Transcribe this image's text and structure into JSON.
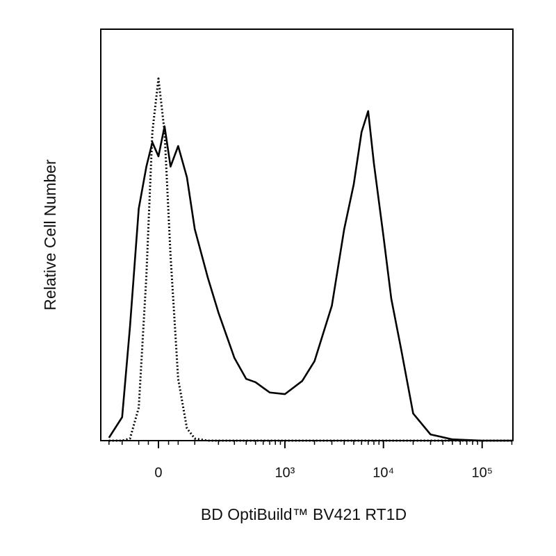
{
  "chart_data": {
    "type": "line",
    "xlabel": "BD OptiBuild™ BV421 RT1D",
    "ylabel": "Relative Cell Number",
    "xscale": {
      "type": "biexponential",
      "width": 105
    },
    "xlim": [
      -188,
      205000
    ],
    "ylim": [
      0,
      100
    ],
    "xticks": [
      0,
      {
        "value": 1000,
        "label": "10³"
      },
      {
        "value": 10000,
        "label": "10⁴"
      },
      {
        "value": 100000,
        "label": "10⁵"
      }
    ],
    "xminorticks": [
      -150,
      -100,
      -50,
      -25,
      25,
      50,
      100,
      200,
      300,
      400,
      500,
      600,
      700,
      800,
      900,
      2000,
      3000,
      4000,
      5000,
      6000,
      7000,
      8000,
      9000,
      20000,
      30000,
      40000,
      50000,
      60000,
      70000,
      80000,
      90000,
      200000
    ],
    "x": [
      -150,
      -100,
      -75,
      -50,
      -30,
      -15,
      0,
      15,
      30,
      50,
      75,
      100,
      150,
      200,
      300,
      400,
      500,
      700,
      1000,
      1500,
      2000,
      3000,
      4000,
      5000,
      6000,
      7000,
      8000,
      10000,
      12000,
      15000,
      20000,
      30000,
      50000,
      100000,
      150000,
      200000
    ],
    "series": [
      {
        "color": "#000000",
        "dash": "solid",
        "values": [
          0.7,
          5.7,
          27.7,
          56.4,
          66.6,
          72.5,
          69.1,
          76.4,
          66.6,
          71.6,
          64.0,
          51.4,
          39.5,
          31.1,
          20.1,
          15.0,
          14.2,
          11.7,
          11.3,
          14.5,
          19.3,
          32.8,
          51.4,
          62.3,
          75.0,
          80.1,
          67.4,
          49.7,
          34.5,
          22.6,
          6.6,
          1.5,
          0.3,
          0,
          0,
          0
        ]
      },
      {
        "color": "#000000",
        "dash": "dotted",
        "values": [
          0,
          0,
          0.5,
          8,
          40,
          75,
          88,
          75,
          45,
          15,
          3,
          0.5,
          0,
          0,
          0,
          0,
          0,
          0,
          0,
          0,
          0,
          0,
          0,
          0,
          0,
          0,
          0,
          0,
          0,
          0,
          0,
          0,
          0,
          0,
          0,
          0
        ]
      }
    ]
  }
}
